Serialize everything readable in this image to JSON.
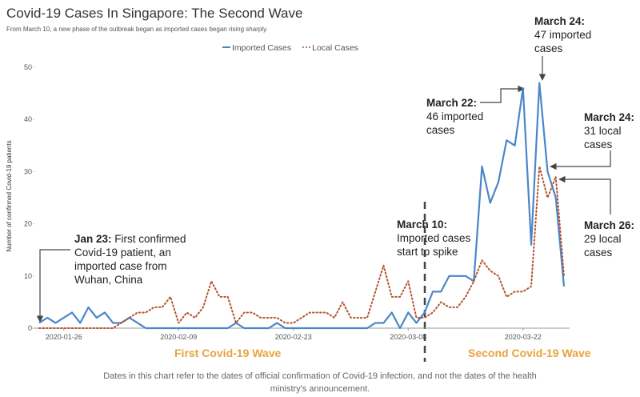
{
  "chart_data": {
    "type": "line",
    "title": "Covid-19 Cases In Singapore: The Second Wave",
    "subtitle": "From March 10, a new phase of the outbreak began as imported cases began rising sharply.",
    "y_label": "Number of confirmed Covid-19 patients",
    "x": [
      "2020-01-23",
      "2020-01-24",
      "2020-01-25",
      "2020-01-26",
      "2020-01-27",
      "2020-01-28",
      "2020-01-29",
      "2020-01-30",
      "2020-01-31",
      "2020-02-01",
      "2020-02-02",
      "2020-02-03",
      "2020-02-04",
      "2020-02-05",
      "2020-02-06",
      "2020-02-07",
      "2020-02-08",
      "2020-02-09",
      "2020-02-10",
      "2020-02-11",
      "2020-02-12",
      "2020-02-13",
      "2020-02-14",
      "2020-02-15",
      "2020-02-16",
      "2020-02-17",
      "2020-02-18",
      "2020-02-19",
      "2020-02-20",
      "2020-02-21",
      "2020-02-22",
      "2020-02-23",
      "2020-02-24",
      "2020-02-25",
      "2020-02-26",
      "2020-02-27",
      "2020-02-28",
      "2020-02-29",
      "2020-03-01",
      "2020-03-02",
      "2020-03-03",
      "2020-03-04",
      "2020-03-05",
      "2020-03-06",
      "2020-03-07",
      "2020-03-08",
      "2020-03-09",
      "2020-03-10",
      "2020-03-11",
      "2020-03-12",
      "2020-03-13",
      "2020-03-14",
      "2020-03-15",
      "2020-03-16",
      "2020-03-17",
      "2020-03-18",
      "2020-03-19",
      "2020-03-20",
      "2020-03-21",
      "2020-03-22",
      "2020-03-23",
      "2020-03-24",
      "2020-03-25",
      "2020-03-26",
      "2020-03-27"
    ],
    "xticks": [
      "2020-01-26",
      "2020-02-09",
      "2020-02-23",
      "2020-03-08",
      "2020-03-22"
    ],
    "series": [
      {
        "name": "Imported Cases",
        "color": "#4a86c8",
        "dash": false,
        "values": [
          1,
          2,
          1,
          2,
          3,
          1,
          4,
          2,
          3,
          1,
          1,
          2,
          1,
          0,
          0,
          0,
          0,
          0,
          0,
          0,
          0,
          0,
          0,
          0,
          1,
          0,
          0,
          0,
          0,
          1,
          0,
          0,
          0,
          0,
          0,
          0,
          0,
          0,
          0,
          0,
          0,
          1,
          1,
          3,
          0,
          3,
          1,
          3,
          7,
          7,
          10,
          10,
          10,
          9,
          31,
          24,
          28,
          36,
          35,
          46,
          16,
          47,
          30,
          25,
          8
        ]
      },
      {
        "name": "Local Cases",
        "color": "#b5532f",
        "dash": true,
        "values": [
          0,
          0,
          0,
          0,
          0,
          0,
          0,
          0,
          0,
          0,
          1,
          2,
          3,
          3,
          4,
          4,
          6,
          1,
          3,
          2,
          4,
          9,
          6,
          6,
          1,
          3,
          3,
          2,
          2,
          2,
          1,
          1,
          2,
          3,
          3,
          3,
          2,
          5,
          2,
          2,
          2,
          7,
          12,
          6,
          6,
          9,
          2,
          2,
          3,
          5,
          4,
          4,
          6,
          9,
          13,
          11,
          10,
          6,
          7,
          7,
          8,
          31,
          25,
          29,
          10
        ]
      }
    ],
    "ylim": [
      0,
      50
    ],
    "yticks": [
      0,
      10,
      20,
      30,
      40,
      50
    ],
    "grid": false,
    "annotations": [
      {
        "title": "Jan 23:",
        "text": "First confirmed Covid-19 patient, an imported case from Wuhan, China"
      },
      {
        "title": "March 10:",
        "text": "Imported cases start to spike"
      },
      {
        "title": "March 22:",
        "text": "46 imported cases"
      },
      {
        "title": "March 24:",
        "text": "47 imported cases"
      },
      {
        "title": "March 24:",
        "text": "31 local cases"
      },
      {
        "title": "March 26:",
        "text": "29 local cases"
      }
    ],
    "waves": [
      "First Covid-19 Wave",
      "Second Covid-19 Wave"
    ],
    "footnote": "Dates in this chart refer to the dates of official confirmation of Covid-19 infection, and not the dates of the health ministry's announcement."
  }
}
